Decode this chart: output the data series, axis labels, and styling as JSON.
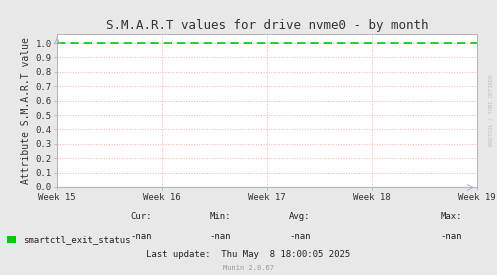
{
  "title": "S.M.A.R.T values for drive nvme0 - by month",
  "ylabel": "Attribute S.M.A.R.T value",
  "ylim": [
    0.0,
    1.0
  ],
  "yticks": [
    0.0,
    0.1,
    0.2,
    0.3,
    0.4,
    0.5,
    0.6,
    0.7,
    0.8,
    0.9,
    1.0
  ],
  "xtick_labels": [
    "Week 15",
    "Week 16",
    "Week 17",
    "Week 18",
    "Week 19"
  ],
  "line_color": "#00cc00",
  "bg_color": "#e8e8e8",
  "plot_bg_color": "#ffffff",
  "grid_color_h": "#ffaaaa",
  "grid_color_v": "#ffaaaa",
  "border_color": "#aaaaaa",
  "title_fontsize": 9,
  "ylabel_fontsize": 7,
  "tick_fontsize": 6.5,
  "legend_label": "smartctl_exit_status",
  "legend_color": "#00cc00",
  "info_fontsize": 6.5,
  "cur_label": "Cur:",
  "cur_val": "-nan",
  "min_label": "Min:",
  "min_val": "-nan",
  "avg_label": "Avg:",
  "avg_val": "-nan",
  "max_label": "Max:",
  "max_val": "-nan",
  "last_update": "Last update:  Thu May  8 18:00:05 2025",
  "munin_label": "Munin 2.0.67",
  "watermark": "RRDTOOL / TOBI OETIKER",
  "arrow_color": "#aabbcc"
}
